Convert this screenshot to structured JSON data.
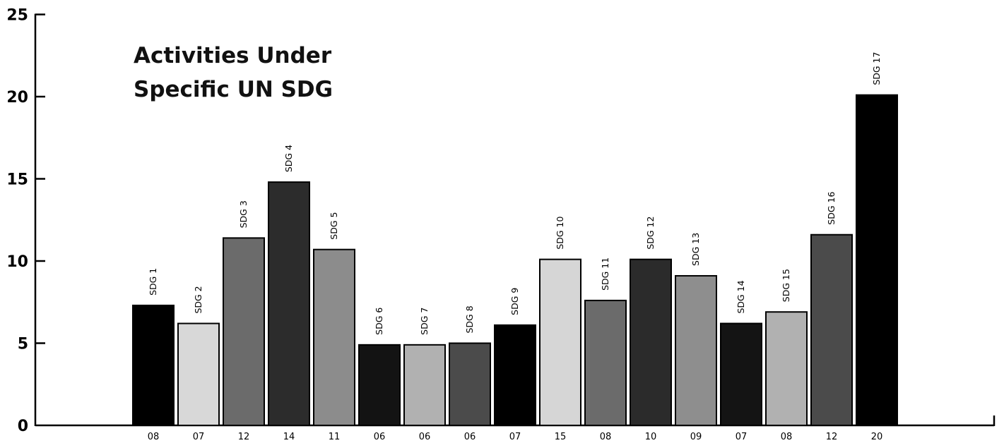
{
  "chart_data": {
    "type": "bar",
    "title_lines": [
      "Activities Under",
      "Specific UN SDG"
    ],
    "categories": [
      "08",
      "07",
      "12",
      "14",
      "11",
      "06",
      "06",
      "06",
      "07",
      "15",
      "08",
      "10",
      "09",
      "07",
      "08",
      "12",
      "20"
    ],
    "bar_labels": [
      "SDG 1",
      "SDG 2",
      "SDG 3",
      "SDG 4",
      "SDG 5",
      "SDG 6",
      "SDG 7",
      "SDG 8",
      "SDG 9",
      "SDG 10",
      "SDG 11",
      "SDG 12",
      "SDG 13",
      "SDG 14",
      "SDG 15",
      "SDG 16",
      "SDG 17"
    ],
    "values": [
      7.3,
      6.2,
      11.4,
      14.8,
      10.7,
      4.9,
      4.9,
      5.0,
      6.1,
      10.1,
      7.6,
      10.1,
      9.1,
      6.2,
      6.9,
      11.6,
      20.1
    ],
    "bar_colors": [
      "#000000",
      "#d8d8d8",
      "#6b6b6b",
      "#2c2c2c",
      "#8c8c8c",
      "#131313",
      "#b1b1b1",
      "#4b4b4b",
      "#000000",
      "#d6d6d6",
      "#6b6b6b",
      "#2b2b2b",
      "#8e8e8e",
      "#141414",
      "#b1b1b1",
      "#4b4b4b",
      "#000000"
    ],
    "y_ticks": [
      0,
      5,
      10,
      15,
      20,
      25
    ],
    "ylim": [
      0,
      25
    ],
    "xlabel": "",
    "ylabel": "",
    "grid": false,
    "legend": "none"
  }
}
